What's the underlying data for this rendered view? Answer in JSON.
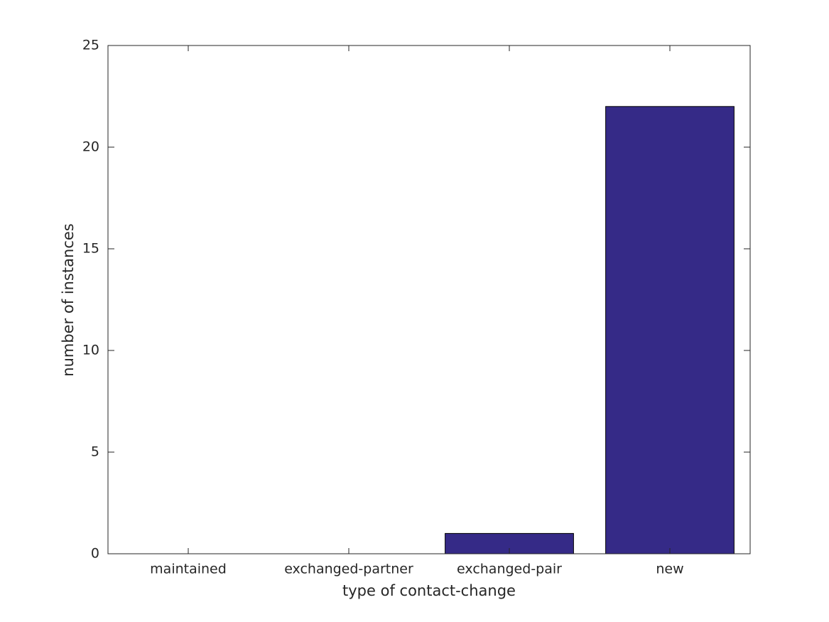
{
  "chart_data": {
    "type": "bar",
    "x_label": "type of contact-change",
    "y_label": "number of instances",
    "categories": [
      "maintained",
      "exchanged-partner",
      "exchanged-pair",
      "new"
    ],
    "values": [
      0,
      0,
      1,
      22
    ],
    "color": "#352a87",
    "ylim": [
      0,
      25
    ],
    "yticks": [
      0,
      5,
      10,
      15,
      20,
      25
    ],
    "grid": false
  }
}
